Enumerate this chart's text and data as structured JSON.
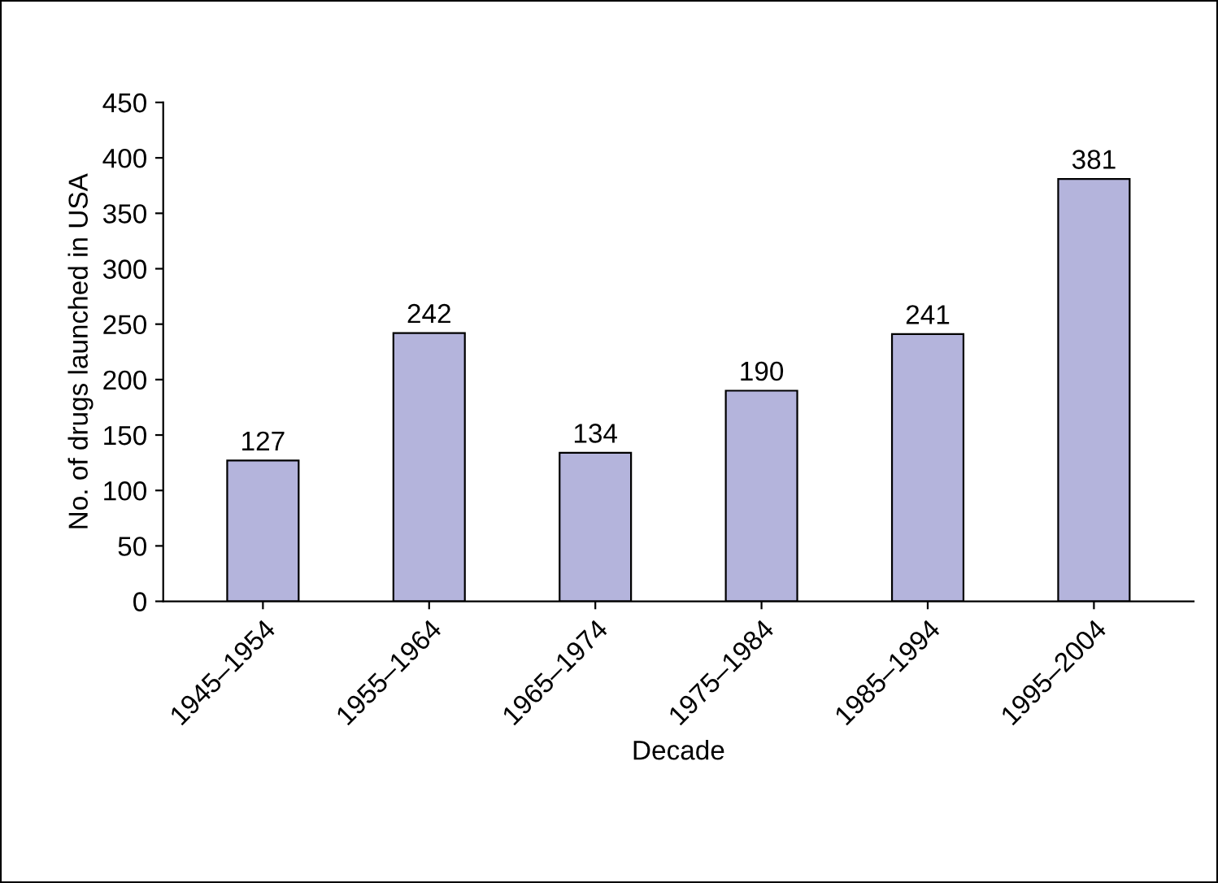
{
  "chart_data": {
    "type": "bar",
    "xlabel": "Decade",
    "ylabel": "No. of drugs launched in USA",
    "categories": [
      "1945–1954",
      "1955–1964",
      "1965–1974",
      "1975–1984",
      "1985–1994",
      "1995–2004"
    ],
    "values": [
      127,
      242,
      134,
      190,
      241,
      381
    ],
    "color": "#b4b4dc",
    "ylim": [
      0,
      450
    ],
    "yticks": [
      0,
      50,
      100,
      150,
      200,
      250,
      300,
      350,
      400,
      450
    ],
    "grid": false,
    "legend": false,
    "data_labels": true
  }
}
